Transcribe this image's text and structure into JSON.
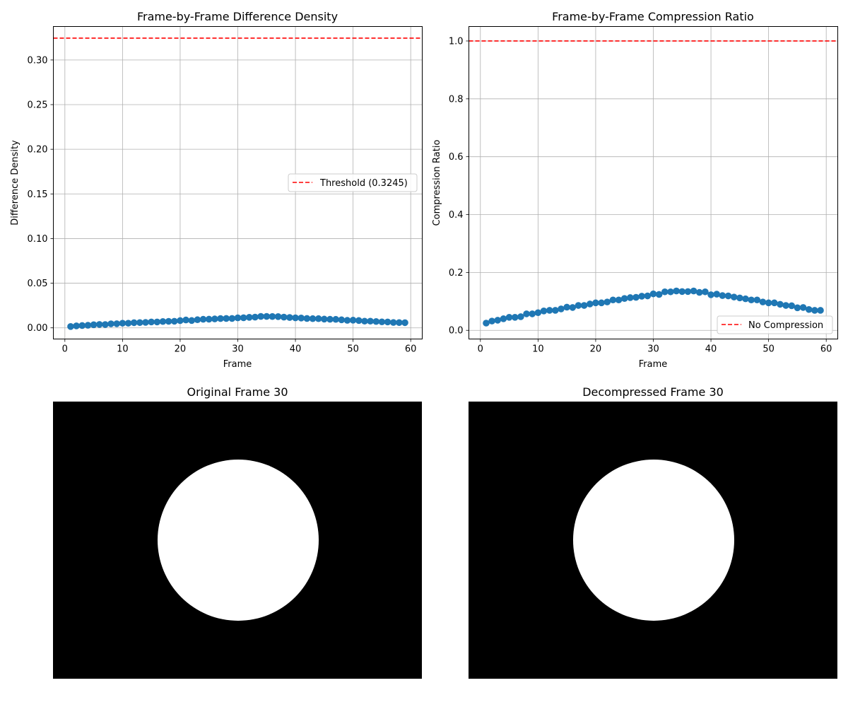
{
  "chart_data": [
    {
      "type": "scatter",
      "title": "Frame-by-Frame Difference Density",
      "xlabel": "Frame",
      "ylabel": "Difference Density",
      "xlim": [
        -2,
        62
      ],
      "ylim": [
        -0.0125,
        0.3375
      ],
      "xticks": [
        0,
        10,
        20,
        30,
        40,
        50,
        60
      ],
      "yticks": [
        0.0,
        0.05,
        0.1,
        0.15,
        0.2,
        0.25,
        0.3
      ],
      "ytick_labels": [
        "0.00",
        "0.05",
        "0.10",
        "0.15",
        "0.20",
        "0.25",
        "0.30"
      ],
      "grid": true,
      "legend_position": "center-right",
      "marker_color": "#1f77b4",
      "line_color": "#1f77b4",
      "threshold": {
        "label": "Threshold (0.3245)",
        "value": 0.3245,
        "color": "#ff0000"
      },
      "x": [
        1,
        2,
        3,
        4,
        5,
        6,
        7,
        8,
        9,
        10,
        11,
        12,
        13,
        14,
        15,
        16,
        17,
        18,
        19,
        20,
        21,
        22,
        23,
        24,
        25,
        26,
        27,
        28,
        29,
        30,
        31,
        32,
        33,
        34,
        35,
        36,
        37,
        38,
        39,
        40,
        41,
        42,
        43,
        44,
        45,
        46,
        47,
        48,
        49,
        50,
        51,
        52,
        53,
        54,
        55,
        56,
        57,
        58,
        59
      ],
      "y": [
        0.0015,
        0.0022,
        0.0026,
        0.0029,
        0.0035,
        0.0038,
        0.0037,
        0.0045,
        0.0046,
        0.0052,
        0.0052,
        0.0058,
        0.0059,
        0.0061,
        0.0066,
        0.0066,
        0.0071,
        0.0073,
        0.0074,
        0.0081,
        0.0088,
        0.0082,
        0.0091,
        0.0096,
        0.0097,
        0.01,
        0.0104,
        0.0105,
        0.0105,
        0.0112,
        0.0113,
        0.0118,
        0.012,
        0.0128,
        0.0128,
        0.0127,
        0.0126,
        0.012,
        0.0116,
        0.0112,
        0.011,
        0.0105,
        0.0103,
        0.0103,
        0.0098,
        0.0096,
        0.0095,
        0.009,
        0.0084,
        0.0086,
        0.0082,
        0.0075,
        0.0075,
        0.0071,
        0.0067,
        0.0066,
        0.006,
        0.0059,
        0.0058
      ]
    },
    {
      "type": "scatter",
      "title": "Frame-by-Frame Compression Ratio",
      "xlabel": "Frame",
      "ylabel": "Compression Ratio",
      "xlim": [
        -2,
        62
      ],
      "ylim": [
        -0.03,
        1.05
      ],
      "xticks": [
        0,
        10,
        20,
        30,
        40,
        50,
        60
      ],
      "yticks": [
        0.0,
        0.2,
        0.4,
        0.6,
        0.8,
        1.0
      ],
      "ytick_labels": [
        "0.0",
        "0.2",
        "0.4",
        "0.6",
        "0.8",
        "1.0"
      ],
      "grid": true,
      "legend_position": "lower-right",
      "marker_color": "#1f77b4",
      "line_color": "#1f77b4",
      "threshold": {
        "label": "No Compression",
        "value": 1.0,
        "color": "#ff0000"
      },
      "x": [
        1,
        2,
        3,
        4,
        5,
        6,
        7,
        8,
        9,
        10,
        11,
        12,
        13,
        14,
        15,
        16,
        17,
        18,
        19,
        20,
        21,
        22,
        23,
        24,
        25,
        26,
        27,
        28,
        29,
        30,
        31,
        32,
        33,
        34,
        35,
        36,
        37,
        38,
        39,
        40,
        41,
        42,
        43,
        44,
        45,
        46,
        47,
        48,
        49,
        50,
        51,
        52,
        53,
        54,
        55,
        56,
        57,
        58,
        59
      ],
      "y": [
        0.025,
        0.032,
        0.035,
        0.04,
        0.045,
        0.045,
        0.047,
        0.057,
        0.057,
        0.061,
        0.067,
        0.069,
        0.069,
        0.074,
        0.08,
        0.079,
        0.086,
        0.086,
        0.091,
        0.095,
        0.095,
        0.098,
        0.105,
        0.105,
        0.11,
        0.113,
        0.114,
        0.118,
        0.119,
        0.126,
        0.124,
        0.133,
        0.133,
        0.136,
        0.134,
        0.134,
        0.136,
        0.131,
        0.133,
        0.123,
        0.125,
        0.12,
        0.119,
        0.115,
        0.112,
        0.109,
        0.105,
        0.105,
        0.098,
        0.095,
        0.095,
        0.09,
        0.086,
        0.085,
        0.078,
        0.079,
        0.072,
        0.069,
        0.069
      ]
    }
  ],
  "images": [
    {
      "title": "Original Frame 30",
      "background": "#000000",
      "shape": "#ffffff"
    },
    {
      "title": "Decompressed Frame 30",
      "background": "#000000",
      "shape": "#ffffff"
    }
  ]
}
